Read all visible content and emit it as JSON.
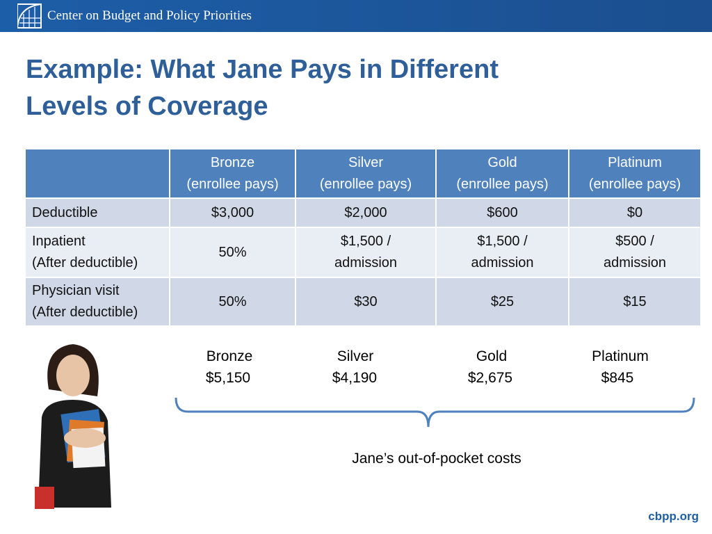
{
  "header": {
    "org": "Center on Budget and Policy Priorities"
  },
  "title": {
    "lines": [
      "Example: What Jane Pays in Different",
      "Levels of Coverage"
    ]
  },
  "table": {
    "columns": [
      [],
      [
        "Bronze",
        "(enrollee pays)"
      ],
      [
        "Silver",
        "(enrollee pays)"
      ],
      [
        "Gold",
        "(enrollee pays)"
      ],
      [
        "Platinum",
        "(enrollee pays)"
      ]
    ],
    "rows": [
      [
        [
          "Deductible"
        ],
        [
          "$3,000"
        ],
        [
          "$2,000"
        ],
        [
          "$600"
        ],
        [
          "$0"
        ]
      ],
      [
        [
          "Inpatient",
          "(After deductible)"
        ],
        [
          "50%"
        ],
        [
          "$1,500 /",
          "admission"
        ],
        [
          "$1,500 /",
          "admission"
        ],
        [
          "$500 /",
          "admission"
        ]
      ],
      [
        [
          "Physician visit",
          "(After deductible)"
        ],
        [
          "50%"
        ],
        [
          "$30"
        ],
        [
          "$25"
        ],
        [
          "$15"
        ]
      ]
    ]
  },
  "costs": {
    "items": [
      {
        "plan": "Bronze",
        "amount": "$5,150"
      },
      {
        "plan": "Silver",
        "amount": "$4,190"
      },
      {
        "plan": "Gold",
        "amount": "$2,675"
      },
      {
        "plan": "Platinum",
        "amount": "$845"
      }
    ],
    "caption": "Jane’s out-of-pocket costs"
  },
  "footer": {
    "site": "cbpp.org"
  }
}
